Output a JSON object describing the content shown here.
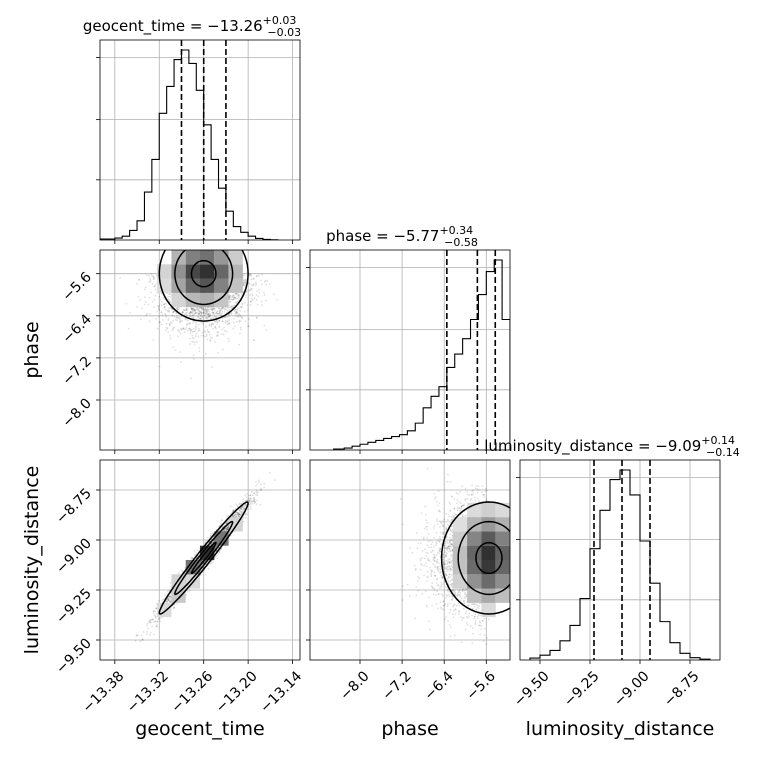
{
  "chart_data": {
    "type": "corner",
    "parameters": [
      "geocent_time",
      "phase",
      "luminosity_distance"
    ],
    "grid": true,
    "quantile_lines": "dashed",
    "titles": [
      {
        "parameter": "geocent_time",
        "prefix": "geocent_time = ",
        "value": "−13.26",
        "plus": "+0.03",
        "minus": "−0.03"
      },
      {
        "parameter": "phase",
        "prefix": "phase = ",
        "value": "−5.77",
        "plus": "+0.34",
        "minus": "−0.58"
      },
      {
        "parameter": "luminosity_distance",
        "prefix": "luminosity_distance = ",
        "value": "−9.09",
        "plus": "+0.14",
        "minus": "−0.14"
      }
    ],
    "axes": {
      "geocent_time": {
        "label": "geocent_time",
        "range": [
          -13.4,
          -13.13
        ],
        "ticks": [
          -13.38,
          -13.32,
          -13.26,
          -13.2,
          -13.14
        ],
        "tick_labels": [
          "−13.38",
          "−13.32",
          "−13.26",
          "−13.20",
          "−13.14"
        ]
      },
      "phase": {
        "label": "phase",
        "range": [
          -8.95,
          -5.15
        ],
        "ticks": [
          -8.0,
          -7.2,
          -6.4,
          -5.6
        ],
        "tick_labels": [
          "−8.0",
          "−7.2",
          "−6.4",
          "−5.6"
        ]
      },
      "luminosity_distance": {
        "label": "luminosity_distance",
        "range": [
          -9.6,
          -8.6
        ],
        "ticks": [
          -9.5,
          -9.25,
          -9.0,
          -8.75
        ],
        "tick_labels": [
          "−9.50",
          "−9.25",
          "−9.00",
          "−8.75"
        ]
      }
    },
    "histograms": {
      "geocent_time": {
        "bin_edges": [
          -13.4,
          -13.38,
          -13.37,
          -13.36,
          -13.35,
          -13.34,
          -13.33,
          -13.32,
          -13.31,
          -13.3,
          -13.29,
          -13.28,
          -13.27,
          -13.26,
          -13.25,
          -13.24,
          -13.23,
          -13.22,
          -13.21,
          -13.2,
          -13.19,
          -13.18,
          -13.17,
          -13.16
        ],
        "counts": [
          0.005,
          0.01,
          0.02,
          0.05,
          0.1,
          0.25,
          0.42,
          0.66,
          0.8,
          0.94,
          0.99,
          0.92,
          0.78,
          0.6,
          0.42,
          0.27,
          0.15,
          0.07,
          0.04,
          0.02,
          0.008,
          0.003,
          0.001
        ],
        "quantiles": [
          -13.29,
          -13.26,
          -13.23
        ]
      },
      "phase": {
        "bin_edges": [
          -8.5,
          -8.3,
          -8.15,
          -8.0,
          -7.85,
          -7.7,
          -7.55,
          -7.4,
          -7.25,
          -7.1,
          -6.95,
          -6.8,
          -6.65,
          -6.5,
          -6.35,
          -6.2,
          -6.05,
          -5.9,
          -5.75,
          -5.6,
          -5.45,
          -5.3,
          -5.15
        ],
        "counts": [
          0.005,
          0.01,
          0.02,
          0.03,
          0.04,
          0.05,
          0.06,
          0.07,
          0.08,
          0.1,
          0.14,
          0.22,
          0.28,
          0.33,
          0.43,
          0.5,
          0.58,
          0.68,
          0.81,
          0.93,
          0.99,
          0.68
        ],
        "quantiles": [
          -6.35,
          -5.77,
          -5.43
        ]
      },
      "luminosity_distance": {
        "bin_edges": [
          -9.55,
          -9.5,
          -9.45,
          -9.4,
          -9.35,
          -9.3,
          -9.25,
          -9.2,
          -9.15,
          -9.1,
          -9.05,
          -9.0,
          -8.95,
          -8.9,
          -8.85,
          -8.8,
          -8.75,
          -8.7,
          -8.65
        ],
        "counts": [
          0.01,
          0.025,
          0.05,
          0.1,
          0.18,
          0.32,
          0.58,
          0.78,
          0.94,
          0.99,
          0.86,
          0.62,
          0.4,
          0.2,
          0.09,
          0.035,
          0.012,
          0.004
        ],
        "quantiles": [
          -9.23,
          -9.09,
          -8.95
        ]
      }
    },
    "joint": [
      {
        "x": "geocent_time",
        "y": "phase",
        "peak": [
          -13.26,
          -5.6
        ],
        "spread": [
          0.03,
          0.45
        ],
        "correlation": 0.0,
        "contour_levels": [
          0.39,
          0.86,
          1.0
        ]
      },
      {
        "x": "geocent_time",
        "y": "luminosity_distance",
        "peak": [
          -13.26,
          -9.09
        ],
        "spread": [
          0.03,
          0.14
        ],
        "correlation": 0.98,
        "contour_levels": [
          0.39,
          0.86,
          1.0
        ]
      },
      {
        "x": "phase",
        "y": "luminosity_distance",
        "peak": [
          -5.55,
          -9.09
        ],
        "spread": [
          0.45,
          0.14
        ],
        "correlation": 0.0,
        "contour_levels": [
          0.39,
          0.86,
          1.0
        ]
      }
    ]
  }
}
